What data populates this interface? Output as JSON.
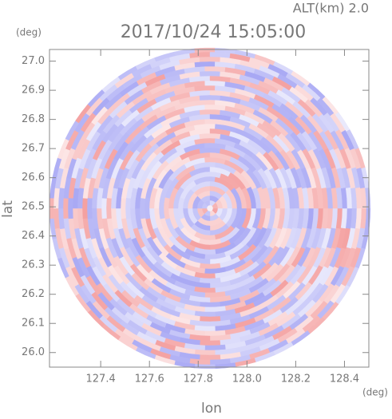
{
  "chart_data": {
    "type": "ppi",
    "title": "2017/10/24 15:05:00",
    "annotation": "ALT(km) 2.0",
    "xlabel": "lon",
    "ylabel": "lat",
    "x_unit": "(deg)",
    "y_unit": "(deg)",
    "xlim": [
      127.19,
      128.5
    ],
    "ylim": [
      25.95,
      27.04
    ],
    "xticks": [
      127.4,
      127.6,
      127.8,
      {
        "value": 128.0,
        "label": "128.0"
      },
      128.2,
      128.4
    ],
    "yticks": [
      {
        "value": 26.0,
        "label": "26.0"
      },
      26.1,
      26.2,
      26.3,
      26.4,
      26.5,
      26.6,
      26.7,
      26.8,
      26.9,
      {
        "value": 27.0,
        "label": "27.0"
      }
    ],
    "positive_color": "#f4a0a0",
    "negative_color": "#a8a8f4"
  }
}
